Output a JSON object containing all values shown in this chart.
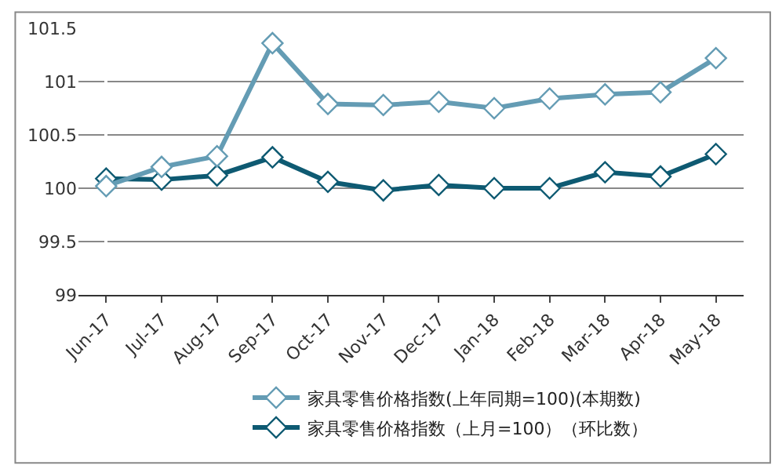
{
  "chart_data": {
    "type": "line",
    "categories": [
      "Jun-17",
      "Jul-17",
      "Aug-17",
      "Sep-17",
      "Oct-17",
      "Nov-17",
      "Dec-17",
      "Jan-18",
      "Feb-18",
      "Mar-18",
      "Apr-18",
      "May-18"
    ],
    "series": [
      {
        "name": "家具零售价格指数(上年同期=100)(本期数)",
        "color": "#649cb4",
        "values": [
          100.02,
          100.2,
          100.3,
          101.36,
          100.79,
          100.78,
          100.81,
          100.75,
          100.84,
          100.88,
          100.9,
          101.22
        ]
      },
      {
        "name": "家具零售价格指数（上月=100）（环比数）",
        "color": "#0e5a72",
        "values": [
          100.09,
          100.08,
          100.12,
          100.29,
          100.06,
          99.98,
          100.03,
          100.0,
          100.0,
          100.15,
          100.11,
          100.32
        ]
      }
    ],
    "ylim": [
      99,
      101.5
    ],
    "yticks": [
      99,
      99.5,
      100,
      {
        "value": 100.5,
        "label": "100.5"
      },
      101,
      101.5
    ],
    "grid": "y",
    "legend": "bottom",
    "marker": "diamond",
    "line_style": "solid"
  }
}
